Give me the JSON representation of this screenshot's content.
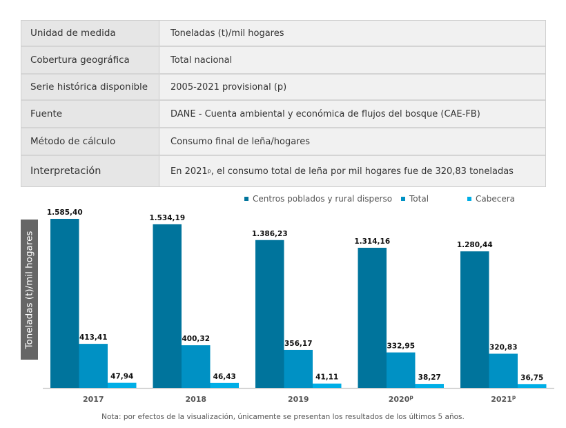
{
  "info_table": [
    {
      "label": "Unidad de medida",
      "value": "Toneladas (t)/mil hogares"
    },
    {
      "label": "Cobertura geográfica",
      "value": "Total nacional"
    },
    {
      "label": "Serie histórica disponible",
      "value": "2005-2021 provisional (p)"
    },
    {
      "label": "Fuente",
      "value": "DANE - Cuenta ambiental y económica de flujos del bosque (CAE-FB)"
    },
    {
      "label": "Método de cálculo",
      "value": "Consumo final de leña/hogares"
    },
    {
      "label": "Interpretación",
      "value_pre": "En 2021",
      "value_sup": "p",
      "value_post": ", el consumo total de leña por mil hogares fue de 320,83 toneladas"
    }
  ],
  "chart_data": {
    "type": "bar",
    "title": "",
    "xlabel": "",
    "ylabel": "Toneladas (t)/mil hogares",
    "categories": [
      "2017",
      "2018",
      "2019",
      "2020",
      "2021"
    ],
    "category_superscripts": [
      "",
      "",
      "",
      "p",
      "p"
    ],
    "series": [
      {
        "name": "Centros poblados y rural disperso",
        "color": "#00749c",
        "values": [
          1585.4,
          1534.19,
          1386.23,
          1314.16,
          1280.44
        ],
        "labels": [
          "1.585,40",
          "1.534,19",
          "1.386,23",
          "1.314,16",
          "1.280,44"
        ]
      },
      {
        "name": "Total",
        "color": "#0091c4",
        "values": [
          413.41,
          400.32,
          356.17,
          332.95,
          320.83
        ],
        "labels": [
          "413,41",
          "400,32",
          "356,17",
          "332,95",
          "320,83"
        ]
      },
      {
        "name": "Cabecera",
        "color": "#00aee6",
        "values": [
          47.94,
          46.43,
          41.11,
          38.27,
          36.75
        ],
        "labels": [
          "47,94",
          "46,43",
          "41,11",
          "38,27",
          "36,75"
        ]
      }
    ],
    "ylim": [
      0,
      1585.4
    ],
    "grid": false,
    "legend_position": "top-right"
  },
  "note": "Nota: por efectos de la visualización, únicamente se presentan los resultados de los últimos 5 años."
}
